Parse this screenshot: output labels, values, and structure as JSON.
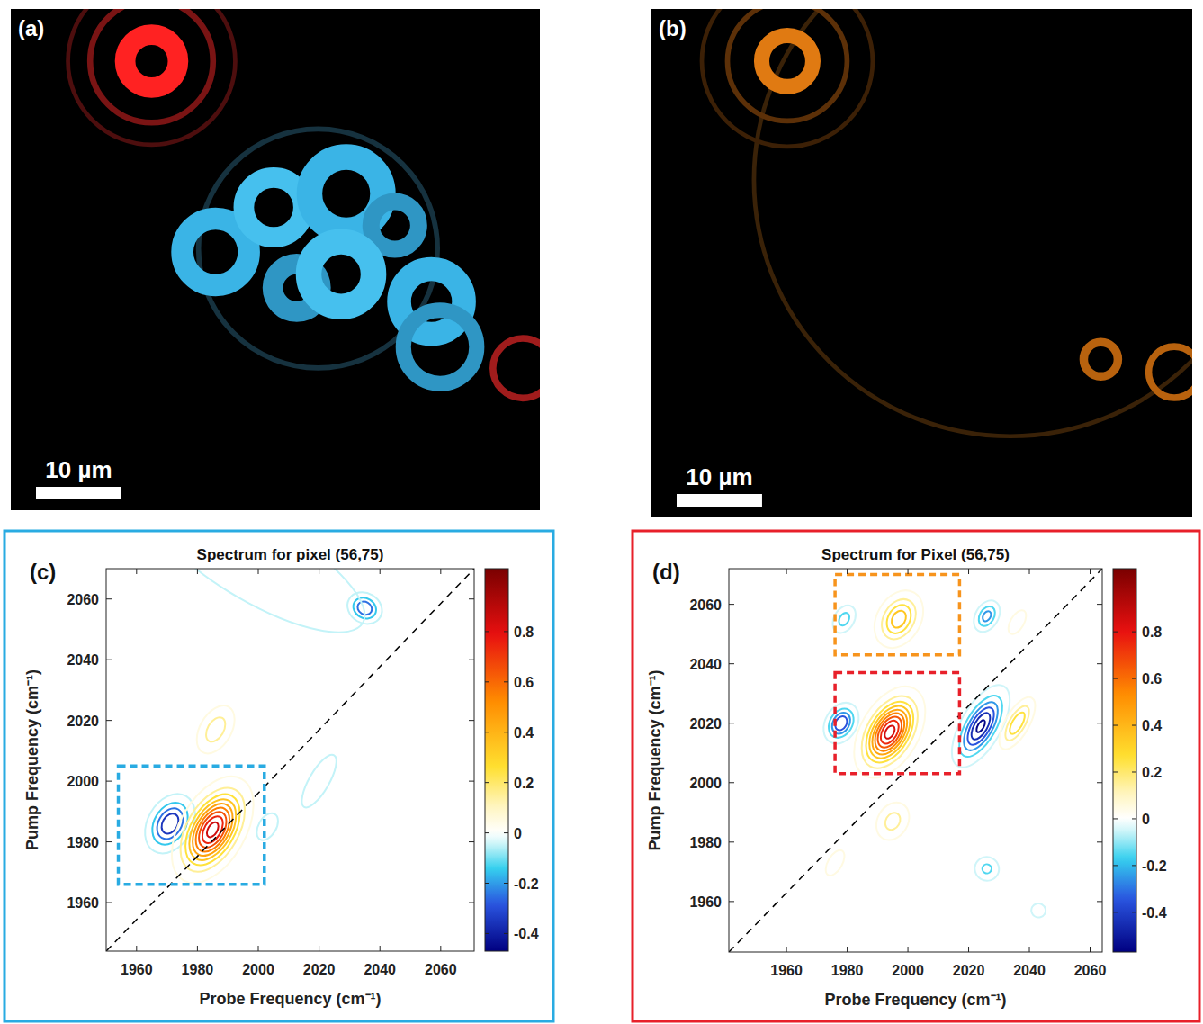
{
  "chart_data": [
    {
      "type": "image",
      "panel": "(a)",
      "xlim": [
        0,
        62
      ],
      "ylim": [
        0,
        58.6
      ],
      "scale_bar": {
        "value": 10,
        "label": "10 µm"
      },
      "features": [
        {
          "x": 16.5,
          "y": 6.1,
          "r": 3.1,
          "width": 2.4,
          "color": "#ff2222"
        },
        {
          "x": 16.5,
          "y": 6.1,
          "r": 7.2,
          "width": 0.7,
          "color": "#7a1414"
        },
        {
          "x": 16.5,
          "y": 6.1,
          "r": 9.8,
          "width": 0.5,
          "color": "#4d0e0e"
        },
        {
          "x": 36.0,
          "y": 28.0,
          "r": 14.0,
          "width": 0.6,
          "color": "#16323f"
        },
        {
          "x": 24.0,
          "y": 28.4,
          "r": 3.9,
          "width": 2.6,
          "color": "#3ab4e6"
        },
        {
          "x": 30.8,
          "y": 23.2,
          "r": 3.5,
          "width": 2.4,
          "color": "#46c0ee"
        },
        {
          "x": 39.3,
          "y": 21.6,
          "r": 4.3,
          "width": 3.0,
          "color": "#3ab4e6"
        },
        {
          "x": 45.0,
          "y": 25.3,
          "r": 2.8,
          "width": 2.0,
          "color": "#2f96c4"
        },
        {
          "x": 33.5,
          "y": 32.6,
          "r": 2.8,
          "width": 2.4,
          "color": "#2f96c4"
        },
        {
          "x": 38.7,
          "y": 31.0,
          "r": 3.8,
          "width": 3.0,
          "color": "#46c0ee"
        },
        {
          "x": 49.3,
          "y": 34.2,
          "r": 3.8,
          "width": 2.8,
          "color": "#3ab4e6"
        },
        {
          "x": 50.3,
          "y": 39.5,
          "r": 4.3,
          "width": 1.8,
          "color": "#2f96c4"
        },
        {
          "x": 60.0,
          "y": 42.0,
          "r": 3.5,
          "width": 0.8,
          "color": "#a01c1c"
        }
      ]
    },
    {
      "type": "image",
      "panel": "(b)",
      "xlim": [
        0,
        63.3
      ],
      "ylim": [
        0,
        59.5
      ],
      "scale_bar": {
        "value": 10,
        "label": "10 µm"
      },
      "features": [
        {
          "x": 42.0,
          "y": 20.0,
          "r": 30.0,
          "width": 0.5,
          "color": "#3a2208"
        },
        {
          "x": 15.9,
          "y": 6.1,
          "r": 3.0,
          "width": 1.8,
          "color": "#e07a12"
        },
        {
          "x": 15.9,
          "y": 6.1,
          "r": 7.0,
          "width": 0.6,
          "color": "#5c3008"
        },
        {
          "x": 15.9,
          "y": 6.1,
          "r": 10.0,
          "width": 0.5,
          "color": "#3c2006"
        },
        {
          "x": 52.6,
          "y": 41.0,
          "r": 2.0,
          "width": 1.0,
          "color": "#b8620e"
        },
        {
          "x": 61.2,
          "y": 42.5,
          "r": 3.0,
          "width": 0.8,
          "color": "#b8620e"
        }
      ]
    },
    {
      "type": "contour",
      "panel": "(c)",
      "color": "#29abe2",
      "title": "Spectrum for pixel (56,75)",
      "x_label": "Probe Frequency (cm⁻¹)",
      "y_label": "Pump Frequency (cm⁻¹)",
      "xlim": [
        1950,
        2071
      ],
      "ylim": [
        1944,
        2070
      ],
      "xticks": [
        1960,
        1980,
        2000,
        2020,
        2040,
        2060
      ],
      "yticks": [
        1960,
        1980,
        2000,
        2020,
        2040,
        2060
      ],
      "contour_levels": [
        -0.55,
        -0.45,
        -0.35,
        -0.25,
        -0.15,
        -0.05,
        0.05,
        0.15,
        0.25,
        0.35,
        0.45,
        0.55,
        0.65,
        0.75,
        0.85
      ],
      "peaks": [
        {
          "x": 1971,
          "y": 1986,
          "amplitude": -0.45,
          "x_width": 3.5,
          "y_width": 5
        },
        {
          "x": 1985,
          "y": 1984,
          "amplitude": 0.9,
          "x_width": 4.5,
          "y_width": 8
        },
        {
          "x": 1986,
          "y": 2017,
          "amplitude": 0.22,
          "x_width": 3,
          "y_width": 5
        },
        {
          "x": 2035,
          "y": 2057,
          "amplitude": -0.35,
          "x_width": 3,
          "y_width": 2.5
        },
        {
          "x": 2000,
          "y": 2072,
          "amplitude": -0.12,
          "x_width": 30,
          "y_width": 10
        },
        {
          "x": 2003,
          "y": 1985,
          "amplitude": -0.08,
          "x_width": 3,
          "y_width": 5
        },
        {
          "x": 2020,
          "y": 2000,
          "amplitude": -0.07,
          "x_width": 4,
          "y_width": 12
        }
      ],
      "boxes": [
        {
          "x": [
            1954,
            2002
          ],
          "y": [
            1966,
            2005
          ],
          "color": "#29abe2"
        }
      ],
      "reference_lines": [
        {
          "x": [
            1950,
            2071
          ],
          "y": [
            1944,
            2070
          ],
          "line_style": "dashed"
        }
      ],
      "colorbar": {
        "range": [
          -0.47,
          1.05
        ],
        "ticks": [
          -0.4,
          -0.2,
          0,
          0.2,
          0.4,
          0.6,
          0.8
        ]
      }
    },
    {
      "type": "contour",
      "panel": "(d)",
      "color": "#e8202a",
      "title": "Spectrum for Pixel (56,75)",
      "x_label": "Probe Frequency (cm⁻¹)",
      "y_label": "Pump Frequency (cm⁻¹)",
      "xlim": [
        1941,
        2064
      ],
      "ylim": [
        1943,
        2072
      ],
      "xticks": [
        1960,
        1980,
        2000,
        2020,
        2040,
        2060
      ],
      "yticks": [
        1960,
        1980,
        2000,
        2020,
        2040,
        2060
      ],
      "contour_levels": [
        -0.55,
        -0.45,
        -0.35,
        -0.25,
        -0.15,
        -0.05,
        0.05,
        0.15,
        0.25,
        0.35,
        0.45,
        0.55,
        0.65,
        0.75,
        0.85
      ],
      "peaks": [
        {
          "x": 1994,
          "y": 2017,
          "amplitude": 0.9,
          "x_width": 4,
          "y_width": 7
        },
        {
          "x": 1978,
          "y": 2020,
          "amplitude": -0.45,
          "x_width": 2.5,
          "y_width": 3.5
        },
        {
          "x": 2024,
          "y": 2019,
          "amplitude": -0.58,
          "x_width": 3,
          "y_width": 7
        },
        {
          "x": 2036,
          "y": 2020,
          "amplitude": 0.35,
          "x_width": 2,
          "y_width": 5
        },
        {
          "x": 1997,
          "y": 2055,
          "amplitude": 0.42,
          "x_width": 3.5,
          "y_width": 5
        },
        {
          "x": 1979,
          "y": 2055,
          "amplitude": -0.2,
          "x_width": 2,
          "y_width": 3
        },
        {
          "x": 2026,
          "y": 2056,
          "amplitude": -0.3,
          "x_width": 2,
          "y_width": 3
        },
        {
          "x": 2036,
          "y": 2054,
          "amplitude": 0.15,
          "x_width": 1.5,
          "y_width": 3
        },
        {
          "x": 1995,
          "y": 1987,
          "amplitude": 0.2,
          "x_width": 3,
          "y_width": 4
        },
        {
          "x": 2026,
          "y": 1971,
          "amplitude": -0.18,
          "x_width": 2.5,
          "y_width": 2.5
        },
        {
          "x": 1976,
          "y": 1973,
          "amplitude": 0.1,
          "x_width": 2,
          "y_width": 4
        },
        {
          "x": 2043,
          "y": 1957,
          "amplitude": -0.1,
          "x_width": 2,
          "y_width": 2
        }
      ],
      "boxes": [
        {
          "x": [
            1976,
            2017
          ],
          "y": [
            2043,
            2070
          ],
          "color": "#f7941d"
        },
        {
          "x": [
            1976,
            2017
          ],
          "y": [
            2003,
            2037
          ],
          "color": "#e8202a"
        }
      ],
      "reference_lines": [
        {
          "x": [
            1941,
            2064
          ],
          "y": [
            1943,
            2072
          ],
          "line_style": "dashed"
        }
      ],
      "colorbar": {
        "range": [
          -0.57,
          1.07
        ],
        "ticks": [
          -0.4,
          -0.2,
          0,
          0.2,
          0.4,
          0.6,
          0.8
        ]
      }
    }
  ]
}
